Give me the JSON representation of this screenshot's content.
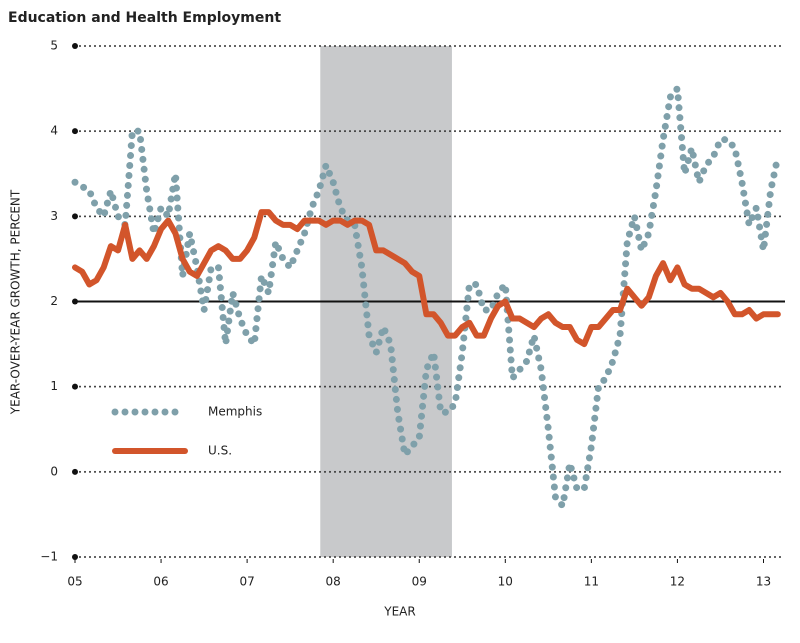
{
  "chart_data": {
    "type": "line",
    "title": "Education and Health Employment",
    "ylabel": "YEAR-OVER-YEAR GROWTH, PERCENT",
    "xlabel": "YEAR",
    "x": [
      2005.0,
      2005.083,
      2005.167,
      2005.25,
      2005.333,
      2005.417,
      2005.5,
      2005.583,
      2005.667,
      2005.75,
      2005.833,
      2005.917,
      2006.0,
      2006.083,
      2006.167,
      2006.25,
      2006.333,
      2006.417,
      2006.5,
      2006.583,
      2006.667,
      2006.75,
      2006.833,
      2006.917,
      2007.0,
      2007.083,
      2007.167,
      2007.25,
      2007.333,
      2007.417,
      2007.5,
      2007.583,
      2007.667,
      2007.75,
      2007.833,
      2007.917,
      2008.0,
      2008.083,
      2008.167,
      2008.25,
      2008.333,
      2008.417,
      2008.5,
      2008.583,
      2008.667,
      2008.75,
      2008.833,
      2008.917,
      2009.0,
      2009.083,
      2009.167,
      2009.25,
      2009.333,
      2009.417,
      2009.5,
      2009.583,
      2009.667,
      2009.75,
      2009.833,
      2009.917,
      2010.0,
      2010.083,
      2010.167,
      2010.25,
      2010.333,
      2010.417,
      2010.5,
      2010.583,
      2010.667,
      2010.75,
      2010.833,
      2010.917,
      2011.0,
      2011.083,
      2011.167,
      2011.25,
      2011.333,
      2011.417,
      2011.5,
      2011.583,
      2011.667,
      2011.75,
      2011.833,
      2011.917,
      2012.0,
      2012.083,
      2012.167,
      2012.25,
      2012.333,
      2012.417,
      2012.5,
      2012.583,
      2012.667,
      2012.75,
      2012.833,
      2012.917,
      2013.0,
      2013.083,
      2013.167
    ],
    "series": [
      {
        "name": "Memphis",
        "color": "#7fa0aa",
        "style": "dotted",
        "values": [
          3.4,
          3.35,
          3.3,
          3.1,
          3.0,
          3.3,
          3.0,
          2.9,
          4.0,
          4.0,
          3.3,
          2.8,
          3.1,
          3.0,
          3.5,
          2.3,
          2.8,
          2.4,
          1.9,
          2.4,
          2.4,
          1.5,
          2.1,
          1.8,
          1.6,
          1.5,
          2.3,
          2.1,
          2.7,
          2.5,
          2.4,
          2.6,
          2.8,
          3.1,
          3.3,
          3.6,
          3.4,
          3.1,
          2.95,
          2.9,
          2.4,
          1.6,
          1.4,
          1.7,
          1.5,
          0.7,
          0.2,
          0.3,
          0.4,
          1.2,
          1.4,
          0.7,
          0.7,
          0.8,
          1.4,
          2.2,
          2.2,
          1.9,
          1.9,
          2.1,
          2.2,
          1.1,
          1.2,
          1.3,
          1.6,
          1.2,
          0.5,
          -0.3,
          -0.4,
          0.1,
          -0.2,
          -0.2,
          0.3,
          1.0,
          1.1,
          1.3,
          1.6,
          2.7,
          3.0,
          2.6,
          2.8,
          3.3,
          3.9,
          4.4,
          4.5,
          3.5,
          3.8,
          3.4,
          3.6,
          3.7,
          3.9,
          3.9,
          3.8,
          3.4,
          2.9,
          3.1,
          2.6,
          3.3,
          3.7
        ]
      },
      {
        "name": "U.S.",
        "color": "#d2552b",
        "style": "solid",
        "values": [
          2.4,
          2.35,
          2.2,
          2.25,
          2.4,
          2.65,
          2.6,
          2.9,
          2.5,
          2.6,
          2.5,
          2.65,
          2.85,
          2.95,
          2.8,
          2.5,
          2.35,
          2.3,
          2.45,
          2.6,
          2.65,
          2.6,
          2.5,
          2.5,
          2.6,
          2.75,
          3.05,
          3.05,
          2.95,
          2.9,
          2.9,
          2.85,
          2.95,
          2.95,
          2.95,
          2.9,
          2.95,
          2.95,
          2.9,
          2.95,
          2.95,
          2.9,
          2.6,
          2.6,
          2.55,
          2.5,
          2.45,
          2.35,
          2.3,
          1.85,
          1.85,
          1.75,
          1.6,
          1.6,
          1.7,
          1.75,
          1.6,
          1.6,
          1.8,
          1.95,
          2.0,
          1.8,
          1.8,
          1.75,
          1.7,
          1.8,
          1.85,
          1.75,
          1.7,
          1.7,
          1.55,
          1.5,
          1.7,
          1.7,
          1.8,
          1.9,
          1.9,
          2.15,
          2.05,
          1.95,
          2.05,
          2.3,
          2.45,
          2.25,
          2.4,
          2.2,
          2.15,
          2.15,
          2.1,
          2.05,
          2.1,
          2.0,
          1.85,
          1.85,
          1.9,
          1.8,
          1.85,
          1.85,
          1.85
        ]
      }
    ],
    "xlim": [
      2005,
      2013.25
    ],
    "ylim": [
      -1,
      5
    ],
    "xticks": [
      {
        "value": 2005,
        "label": "05"
      },
      {
        "value": 2006,
        "label": "06"
      },
      {
        "value": 2007,
        "label": "07"
      },
      {
        "value": 2008,
        "label": "08"
      },
      {
        "value": 2009,
        "label": "09"
      },
      {
        "value": 2010,
        "label": "10"
      },
      {
        "value": 2011,
        "label": "11"
      },
      {
        "value": 2012,
        "label": "12"
      },
      {
        "value": 2013,
        "label": "13"
      }
    ],
    "yticks": [
      {
        "value": -1,
        "label": "−1"
      },
      0,
      1,
      2,
      3,
      4,
      5
    ],
    "reference_line": 2,
    "shaded_region": [
      2007.85,
      2009.38
    ],
    "grid": true,
    "legend": "lower left"
  }
}
